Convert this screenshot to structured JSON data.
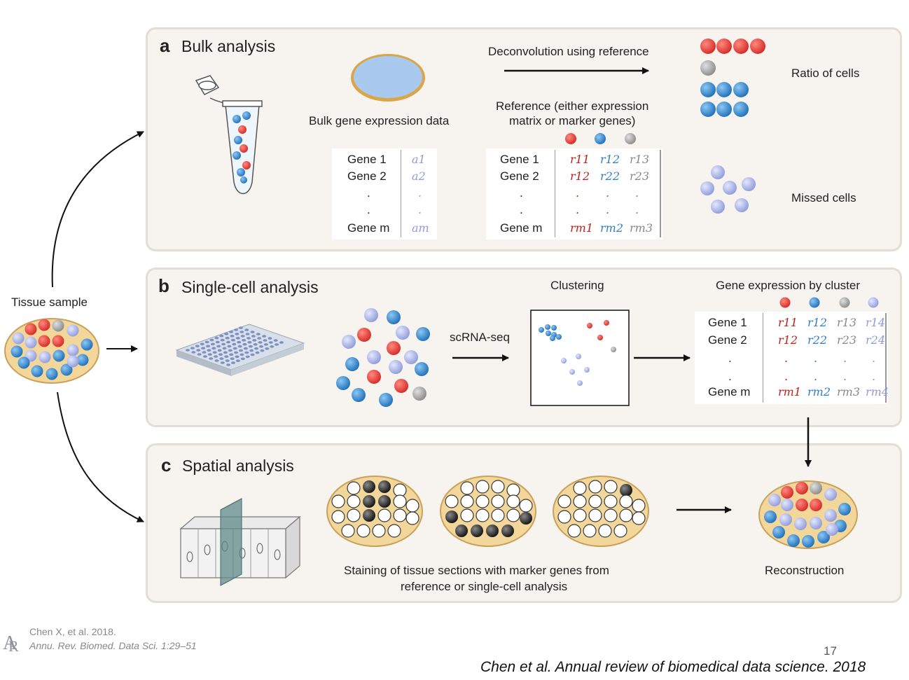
{
  "tissue": {
    "label": "Tissue sample"
  },
  "panel_a": {
    "letter": "a",
    "title": "Bulk analysis",
    "bulk_label": "Bulk gene expression data",
    "deconv_label": "Deconvolution using reference",
    "reference_label_1": "Reference (either expression",
    "reference_label_2": "matrix or marker genes)",
    "bulk_matrix": {
      "genes": [
        "Gene 1",
        "Gene 2",
        ".",
        ".",
        "Gene m"
      ],
      "values": [
        "a1",
        "a2",
        ".",
        ".",
        "am"
      ]
    },
    "ref_matrix": {
      "genes": [
        "Gene 1",
        "Gene 2",
        ".",
        ".",
        "Gene m"
      ],
      "rows": [
        [
          "r11",
          "r12",
          "r13"
        ],
        [
          "r12",
          "r22",
          "r23"
        ],
        [
          ".",
          ".",
          "."
        ],
        [
          ".",
          ".",
          "."
        ],
        [
          "rm1",
          "rm2",
          "rm3"
        ]
      ]
    },
    "ratio_label": "Ratio of cells",
    "missed_label": "Missed cells"
  },
  "panel_b": {
    "letter": "b",
    "title": "Single-cell analysis",
    "scrna_label": "scRNA-seq",
    "clustering_label": "Clustering",
    "by_cluster_label": "Gene expression by cluster",
    "cluster_matrix": {
      "genes": [
        "Gene 1",
        "Gene 2",
        ".",
        ".",
        "Gene m"
      ],
      "rows": [
        [
          "r11",
          "r12",
          "r13",
          "r14"
        ],
        [
          "r12",
          "r22",
          "r23",
          "r24"
        ],
        [
          ".",
          ".",
          ".",
          "."
        ],
        [
          ".",
          ".",
          ".",
          "."
        ],
        [
          "rm1",
          "rm2",
          "rm3",
          "rm4"
        ]
      ]
    }
  },
  "panel_c": {
    "letter": "c",
    "title": "Spatial analysis",
    "staining_label_1": "Staining of tissue sections with marker genes from",
    "staining_label_2": "reference or single-cell analysis",
    "reconstruction_label": "Reconstruction"
  },
  "footer": {
    "credit_1": "Chen X, et al. 2018.",
    "credit_2": "Annu. Rev. Biomed. Data Sci. 1:29–51",
    "page_number": "17",
    "citation": "Chen et al. Annual review of biomedical data science. 2018"
  },
  "colors": {
    "red": "#e03a35",
    "blue": "#2f86d0",
    "gray": "#9a9a9a",
    "lavender": "#a8b3e6",
    "tissue_fill": "#f3d79a",
    "tissue_border": "#c9a15a",
    "black": "#222222",
    "panel_bg": "#f7f3ee"
  },
  "icons": [
    "tube-icon",
    "dish-icon",
    "microplate-icon",
    "tissue-block-icon"
  ]
}
